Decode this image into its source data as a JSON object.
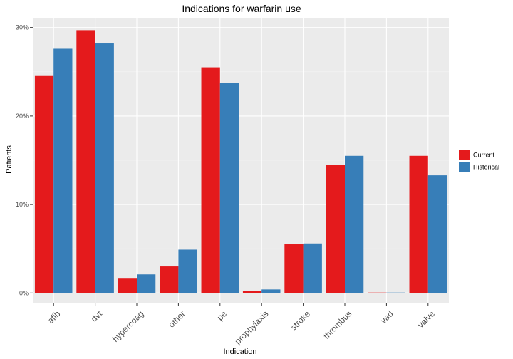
{
  "chart_data": {
    "type": "bar",
    "title": "Indications for warfarin use",
    "xlabel": "Indication",
    "ylabel": "Patients",
    "categories": [
      "afib",
      "dvt",
      "hypercoag",
      "other",
      "pe",
      "prophylaxis",
      "stroke",
      "thrombus",
      "vad",
      "valve"
    ],
    "series": [
      {
        "name": "Current",
        "color": "#e41a1c",
        "values": [
          0.246,
          0.297,
          0.017,
          0.03,
          0.255,
          0.002,
          0.055,
          0.145,
          0.0005,
          0.155
        ]
      },
      {
        "name": "Historical",
        "color": "#377eb8",
        "values": [
          0.276,
          0.282,
          0.021,
          0.049,
          0.237,
          0.004,
          0.056,
          0.155,
          0.0005,
          0.133
        ]
      }
    ],
    "ylim": [
      -0.011,
      0.311
    ],
    "yticks": [
      0,
      0.1,
      0.2,
      0.3
    ],
    "ytick_labels": [
      "0%",
      "10%",
      "20%",
      "30%"
    ],
    "grid": true,
    "legend_position": "right",
    "background": "#ebebeb"
  }
}
